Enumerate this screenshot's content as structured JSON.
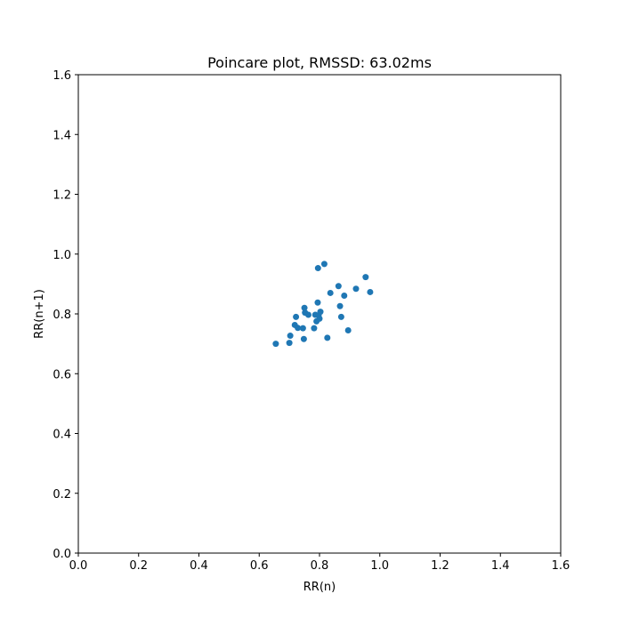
{
  "chart_data": {
    "type": "scatter",
    "title": "Poincare plot, RMSSD: 63.02ms",
    "xlabel": "RR(n)",
    "ylabel": "RR(n+1)",
    "xlim": [
      0,
      1.6
    ],
    "ylim": [
      0,
      1.6
    ],
    "xticks": [
      "0.0",
      "0.2",
      "0.4",
      "0.6",
      "0.8",
      "1.0",
      "1.2",
      "1.4",
      "1.6"
    ],
    "yticks": [
      "0.0",
      "0.2",
      "0.4",
      "0.6",
      "0.8",
      "1.0",
      "1.2",
      "1.4",
      "1.6"
    ],
    "grid": false,
    "marker_color": "#1f77b4",
    "points": [
      {
        "x": 0.655,
        "y": 0.7
      },
      {
        "x": 0.7,
        "y": 0.703
      },
      {
        "x": 0.703,
        "y": 0.727
      },
      {
        "x": 0.718,
        "y": 0.763
      },
      {
        "x": 0.722,
        "y": 0.79
      },
      {
        "x": 0.728,
        "y": 0.753
      },
      {
        "x": 0.745,
        "y": 0.752
      },
      {
        "x": 0.748,
        "y": 0.716
      },
      {
        "x": 0.75,
        "y": 0.82
      },
      {
        "x": 0.752,
        "y": 0.804
      },
      {
        "x": 0.763,
        "y": 0.797
      },
      {
        "x": 0.782,
        "y": 0.752
      },
      {
        "x": 0.786,
        "y": 0.797
      },
      {
        "x": 0.79,
        "y": 0.775
      },
      {
        "x": 0.794,
        "y": 0.838
      },
      {
        "x": 0.795,
        "y": 0.953
      },
      {
        "x": 0.797,
        "y": 0.795
      },
      {
        "x": 0.8,
        "y": 0.784
      },
      {
        "x": 0.803,
        "y": 0.807
      },
      {
        "x": 0.816,
        "y": 0.967
      },
      {
        "x": 0.826,
        "y": 0.72
      },
      {
        "x": 0.836,
        "y": 0.87
      },
      {
        "x": 0.863,
        "y": 0.893
      },
      {
        "x": 0.868,
        "y": 0.826
      },
      {
        "x": 0.872,
        "y": 0.79
      },
      {
        "x": 0.882,
        "y": 0.861
      },
      {
        "x": 0.895,
        "y": 0.745
      },
      {
        "x": 0.921,
        "y": 0.884
      },
      {
        "x": 0.953,
        "y": 0.923
      },
      {
        "x": 0.968,
        "y": 0.873
      }
    ]
  }
}
